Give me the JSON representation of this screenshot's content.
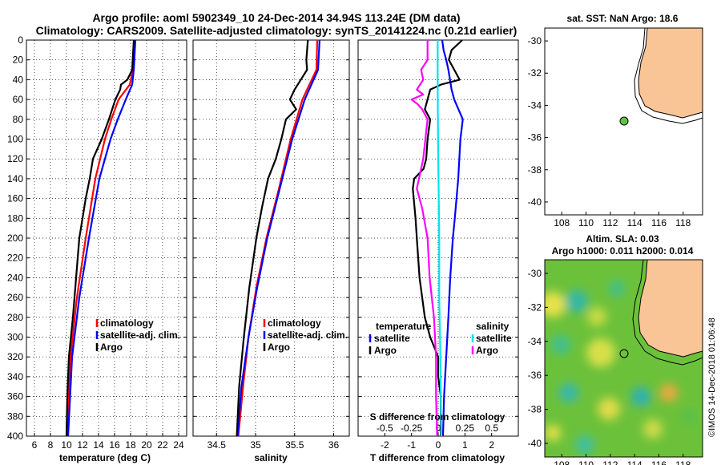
{
  "title": {
    "line1": "Argo profile: aoml 5902349_10 24-Dec-2014 34.94S 113.24E (DM data)",
    "line2": "Climatology: CARS2009. Satellite-adjusted climatology: synTS_20141224.nc (0.21d earlier)"
  },
  "colors": {
    "climatology": "#ff0000",
    "satellite": "#0000ff",
    "argo": "#000000",
    "sal_satellite": "#00e5ee",
    "sal_argo": "#ff00ff",
    "land": "#f9c597"
  },
  "chart_data": [
    {
      "type": "line",
      "id": "temperature",
      "xlabel": "temperature (deg C)",
      "ylabel": "",
      "xlim": [
        5,
        25
      ],
      "ylim": [
        400,
        0
      ],
      "xticks": [
        6,
        8,
        10,
        12,
        14,
        16,
        18,
        20,
        22,
        24
      ],
      "yticks": [
        0,
        20,
        40,
        60,
        80,
        100,
        120,
        140,
        160,
        180,
        200,
        220,
        240,
        260,
        280,
        300,
        320,
        340,
        360,
        380,
        400
      ],
      "grid": true,
      "legend": [
        "climatology",
        "satellite-adj. clim.",
        "Argo"
      ],
      "series": [
        {
          "name": "climatology",
          "color": "#ff0000",
          "depth": [
            0,
            30,
            45,
            60,
            80,
            100,
            140,
            200,
            260,
            320,
            400
          ],
          "values": [
            18.5,
            18.3,
            17.9,
            16.5,
            15.6,
            14.8,
            13.6,
            12.4,
            11.3,
            10.5,
            10.1
          ]
        },
        {
          "name": "satellite-adj. clim.",
          "color": "#0000ff",
          "depth": [
            0,
            30,
            45,
            60,
            80,
            100,
            140,
            200,
            260,
            320,
            400
          ],
          "values": [
            18.6,
            18.4,
            18.2,
            17.4,
            16.4,
            15.5,
            14.1,
            12.8,
            11.6,
            10.7,
            10.2
          ]
        },
        {
          "name": "Argo",
          "color": "#000000",
          "depth": [
            0,
            30,
            40,
            45,
            50,
            60,
            80,
            100,
            120,
            140,
            160,
            200,
            240,
            280,
            320,
            360,
            400
          ],
          "values": [
            18.4,
            18.2,
            17.6,
            16.8,
            16.7,
            16.1,
            15.3,
            14.4,
            13.3,
            12.9,
            12.4,
            11.6,
            11.2,
            10.8,
            10.3,
            10.1,
            10.0
          ]
        }
      ]
    },
    {
      "type": "line",
      "id": "salinity",
      "xlabel": "salinity",
      "ylabel": "",
      "xlim": [
        34.2,
        36.2
      ],
      "ylim": [
        400,
        0
      ],
      "xticks": [
        34.5,
        35,
        35.5,
        36
      ],
      "yticks": [
        0,
        20,
        40,
        60,
        80,
        100,
        120,
        140,
        160,
        180,
        200,
        220,
        240,
        260,
        280,
        300,
        320,
        340,
        360,
        380,
        400
      ],
      "grid": true,
      "legend": [
        "climatology",
        "satellite-adj. clim.",
        "Argo"
      ],
      "series": [
        {
          "name": "climatology",
          "color": "#ff0000",
          "depth": [
            0,
            30,
            60,
            100,
            150,
            200,
            250,
            300,
            350,
            400
          ],
          "values": [
            35.79,
            35.78,
            35.6,
            35.45,
            35.3,
            35.14,
            35.01,
            34.91,
            34.84,
            34.78
          ]
        },
        {
          "name": "satellite-adj. clim.",
          "color": "#0000ff",
          "depth": [
            0,
            30,
            60,
            100,
            150,
            200,
            250,
            300,
            350,
            400
          ],
          "values": [
            35.82,
            35.8,
            35.63,
            35.47,
            35.31,
            35.15,
            35.02,
            34.91,
            34.82,
            34.77
          ]
        },
        {
          "name": "Argo",
          "color": "#000000",
          "depth": [
            0,
            20,
            30,
            40,
            50,
            60,
            70,
            80,
            100,
            120,
            140,
            170,
            200,
            250,
            300,
            350,
            400
          ],
          "values": [
            35.67,
            35.65,
            35.66,
            35.58,
            35.5,
            35.44,
            35.52,
            35.39,
            35.33,
            35.26,
            35.16,
            35.08,
            35.01,
            34.92,
            34.85,
            34.79,
            34.76
          ]
        }
      ]
    },
    {
      "type": "line",
      "id": "differences",
      "xlabel": "T difference from climatology",
      "xlabel2": "S difference from climatology",
      "xlim": [
        -3,
        3
      ],
      "ylim": [
        400,
        0
      ],
      "xticks": [
        -2,
        -1,
        0,
        1,
        2
      ],
      "xtick_labels": [
        "-2",
        "-1",
        "0",
        "1",
        "2"
      ],
      "xticks2": [
        -0.5,
        -0.25,
        0,
        0.25,
        0.5
      ],
      "xtick_labels2": [
        "-0.5",
        "-0.25",
        "0",
        "0.25",
        "0.5"
      ],
      "yticks": [
        0,
        20,
        40,
        60,
        80,
        100,
        120,
        140,
        160,
        180,
        200,
        220,
        240,
        260,
        280,
        300,
        320,
        340,
        360,
        380,
        400
      ],
      "legend_temperature": {
        "heading": "temperature",
        "items": [
          "satellite",
          "Argo"
        ]
      },
      "legend_salinity": {
        "heading": "salinity",
        "items": [
          "satellite",
          "Argo"
        ]
      },
      "series": [
        {
          "name": "T satellite",
          "color": "#0000ff",
          "depth": [
            0,
            10,
            20,
            30,
            40,
            50,
            60,
            80,
            100,
            140,
            180,
            200,
            240,
            280,
            320,
            360,
            400
          ],
          "values": [
            0.15,
            0.2,
            0.3,
            0.38,
            0.44,
            0.5,
            0.6,
            0.92,
            0.83,
            0.75,
            0.62,
            0.55,
            0.45,
            0.38,
            0.3,
            0.22,
            0.18
          ]
        },
        {
          "name": "T Argo",
          "color": "#000000",
          "depth": [
            0,
            10,
            20,
            30,
            40,
            45,
            50,
            60,
            70,
            80,
            100,
            120,
            130,
            140,
            150,
            180,
            200,
            240,
            280,
            300,
            320,
            340,
            360,
            380,
            400
          ],
          "values": [
            0.9,
            0.5,
            0.4,
            0.6,
            0.8,
            0.1,
            -0.3,
            -0.4,
            -0.5,
            -0.3,
            -0.4,
            -0.45,
            -0.55,
            -0.9,
            -0.95,
            -0.85,
            -0.8,
            -0.7,
            -0.5,
            -0.3,
            0.0,
            0.0,
            0.1,
            0.1,
            0.1
          ]
        },
        {
          "name": "S satellite",
          "color": "#00e5ee",
          "depth": [
            0,
            40,
            80,
            120,
            160,
            200,
            260,
            320,
            360,
            400
          ],
          "values": [
            -0.005,
            -0.005,
            -0.003,
            0.0,
            0.005,
            0.01,
            0.01,
            0.02,
            0.025,
            0.03
          ]
        },
        {
          "name": "S Argo",
          "color": "#ff00ff",
          "depth": [
            0,
            20,
            30,
            40,
            50,
            55,
            60,
            65,
            70,
            80,
            100,
            120,
            150,
            170,
            200,
            240,
            280,
            320,
            360,
            400
          ],
          "values": [
            -0.1,
            -0.1,
            -0.16,
            -0.14,
            -0.2,
            -0.14,
            -0.25,
            -0.19,
            -0.15,
            -0.1,
            -0.12,
            -0.14,
            -0.2,
            -0.15,
            -0.1,
            -0.08,
            -0.04,
            -0.02,
            -0.02,
            -0.01
          ]
        }
      ]
    }
  ],
  "map_top": {
    "title": "sat. SST: NaN Argo: 18.6",
    "xticks": [
      "108",
      "110",
      "112",
      "114",
      "116",
      "118"
    ],
    "yticks": [
      "-30",
      "-32",
      "-34",
      "-36",
      "-38",
      "-40"
    ],
    "argo_lon": 113.24,
    "argo_lat": -34.94
  },
  "map_bottom": {
    "title1": "Altim. SLA: 0.03",
    "title2": "Argo h1000: 0.011 h2000: 0.014",
    "xticks": [
      "108",
      "110",
      "112",
      "114",
      "116",
      "118"
    ],
    "yticks": [
      "-30",
      "-32",
      "-34",
      "-36",
      "-38",
      "-40"
    ],
    "argo_lon": 113.24,
    "argo_lat": -34.94
  },
  "credit": "©IMOS 14-Dec-2018 01:06:48"
}
